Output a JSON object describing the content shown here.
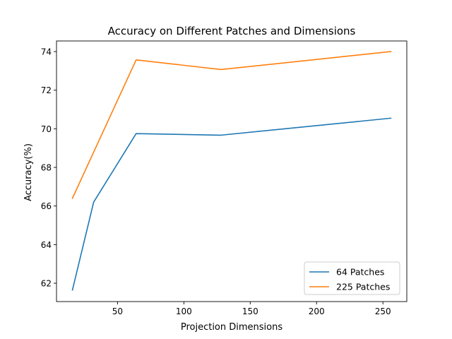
{
  "chart_data": {
    "type": "line",
    "title": "Accuracy on Different Patches and Dimensions",
    "xlabel": "Projection Dimensions",
    "ylabel": "Accuracy(%)",
    "xlim": [
      4,
      268
    ],
    "ylim": [
      61.05,
      74.55
    ],
    "xticks": [
      50,
      100,
      150,
      200,
      250
    ],
    "yticks": [
      62,
      64,
      66,
      68,
      70,
      72,
      74
    ],
    "grid": false,
    "legend_position": "lower right",
    "series": [
      {
        "name": "64 Patches",
        "color": "#1f77b4",
        "x": [
          16,
          32,
          64,
          128,
          256
        ],
        "y": [
          61.65,
          66.2,
          69.75,
          69.67,
          70.55
        ]
      },
      {
        "name": "225 Patches",
        "color": "#ff7f0e",
        "x": [
          16,
          64,
          128,
          256
        ],
        "y": [
          66.4,
          73.57,
          73.07,
          74.0
        ]
      }
    ]
  }
}
